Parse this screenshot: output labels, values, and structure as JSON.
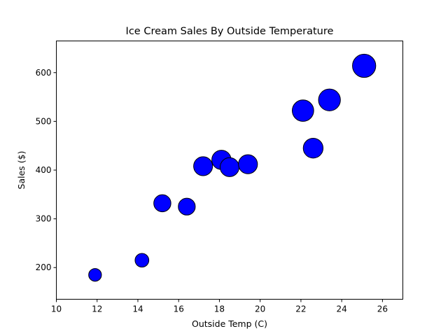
{
  "chart_data": {
    "type": "scatter",
    "title": "Ice Cream Sales By Outside Temperature",
    "xlabel": "Outside Temp (C)",
    "ylabel": "Sales ($)",
    "xlim": [
      10,
      27
    ],
    "ylim": [
      135,
      665
    ],
    "xticks": [
      10,
      12,
      14,
      16,
      18,
      20,
      22,
      24,
      26
    ],
    "yticks": [
      200,
      300,
      400,
      500,
      600
    ],
    "grid": false,
    "marker_color": "#0000ff",
    "edge_color": "#000000",
    "points": [
      {
        "x": 11.9,
        "y": 185
      },
      {
        "x": 14.2,
        "y": 215
      },
      {
        "x": 15.2,
        "y": 332
      },
      {
        "x": 16.4,
        "y": 325
      },
      {
        "x": 17.2,
        "y": 408
      },
      {
        "x": 18.1,
        "y": 421
      },
      {
        "x": 18.5,
        "y": 406
      },
      {
        "x": 19.4,
        "y": 412
      },
      {
        "x": 22.1,
        "y": 522
      },
      {
        "x": 22.6,
        "y": 445
      },
      {
        "x": 23.4,
        "y": 544
      },
      {
        "x": 25.1,
        "y": 614
      }
    ]
  }
}
